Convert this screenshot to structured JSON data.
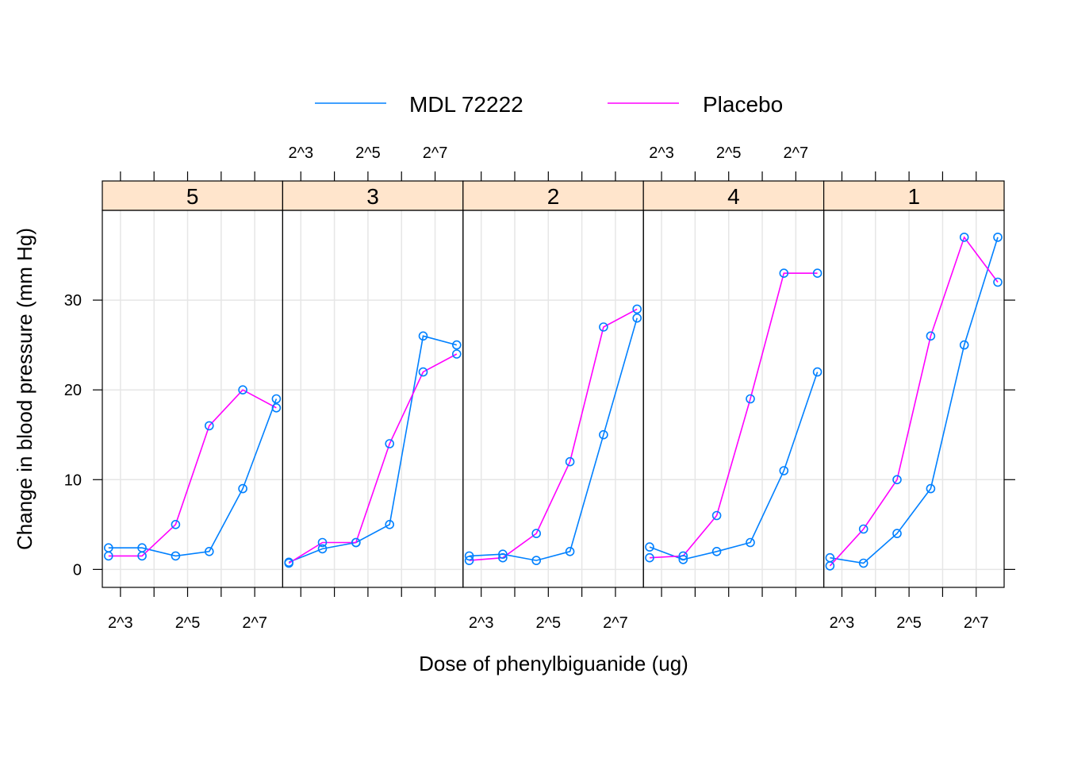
{
  "chart_data": {
    "type": "line",
    "xlabel": "Dose of phenylbiguanide (ug)",
    "ylabel": "Change in blood pressure (mm Hg)",
    "x_scale": "log2",
    "x_tick_labels": [
      "2^3",
      "2^5",
      "2^7"
    ],
    "x_tick_values": [
      8,
      32,
      128
    ],
    "y_tick_labels": [
      "0",
      "10",
      "20",
      "30"
    ],
    "y_tick_values": [
      0,
      10,
      20,
      30
    ],
    "ylim": [
      -2,
      40
    ],
    "grid": true,
    "legend": {
      "placement": "top",
      "entries": [
        {
          "name": "MDL 72222",
          "color": "#0080ff"
        },
        {
          "name": "Placebo",
          "color": "#ff00ff"
        }
      ]
    },
    "colors": {
      "strip_fill": "#ffe5cc",
      "grid": "#e6e6e6",
      "point": "#0080ff"
    },
    "x": [
      6.25,
      12.5,
      25,
      50,
      100,
      200
    ],
    "panels": [
      {
        "label": "5",
        "series": [
          {
            "name": "MDL 72222",
            "values": [
              2.4,
              2.4,
              1.5,
              2,
              9,
              19
            ]
          },
          {
            "name": "Placebo",
            "values": [
              1.5,
              1.5,
              5,
              16,
              20,
              18
            ]
          }
        ]
      },
      {
        "label": "3",
        "series": [
          {
            "name": "MDL 72222",
            "values": [
              0.8,
              2.3,
              3,
              5,
              26,
              25
            ]
          },
          {
            "name": "Placebo",
            "values": [
              0.7,
              3,
              3,
              14,
              22,
              24
            ]
          }
        ]
      },
      {
        "label": "2",
        "series": [
          {
            "name": "MDL 72222",
            "values": [
              1.5,
              1.7,
              1,
              2,
              15,
              28
            ]
          },
          {
            "name": "Placebo",
            "values": [
              1,
              1.3,
              4,
              12,
              27,
              29
            ]
          }
        ]
      },
      {
        "label": "4",
        "series": [
          {
            "name": "MDL 72222",
            "values": [
              2.5,
              1.1,
              2,
              3,
              11,
              22
            ]
          },
          {
            "name": "Placebo",
            "values": [
              1.3,
              1.5,
              6,
              19,
              33,
              33
            ]
          }
        ]
      },
      {
        "label": "1",
        "series": [
          {
            "name": "MDL 72222",
            "values": [
              1.3,
              0.7,
              4,
              9,
              25,
              37
            ]
          },
          {
            "name": "Placebo",
            "values": [
              0.4,
              4.5,
              10,
              26,
              37,
              32
            ]
          }
        ]
      }
    ]
  }
}
